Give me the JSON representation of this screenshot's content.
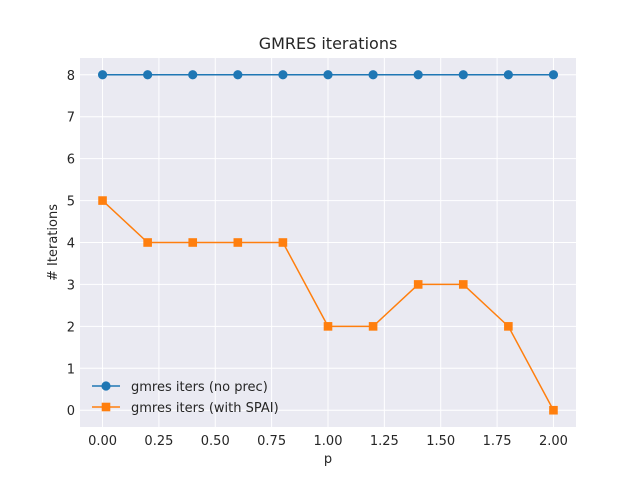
{
  "chart_data": {
    "type": "line",
    "title": "GMRES iterations",
    "xlabel": "p",
    "ylabel": "# Iterations",
    "x": [
      0.0,
      0.2,
      0.4,
      0.6,
      0.8,
      1.0,
      1.2,
      1.4,
      1.6,
      1.8,
      2.0
    ],
    "xlim": [
      -0.1,
      2.1
    ],
    "ylim": [
      -0.4,
      8.4
    ],
    "xticks": [
      0.0,
      0.25,
      0.5,
      0.75,
      1.0,
      1.25,
      1.5,
      1.75,
      2.0
    ],
    "xtick_labels": [
      "0.00",
      "0.25",
      "0.50",
      "0.75",
      "1.00",
      "1.25",
      "1.50",
      "1.75",
      "2.00"
    ],
    "yticks": [
      0,
      1,
      2,
      3,
      4,
      5,
      6,
      7,
      8
    ],
    "ytick_labels": [
      "0",
      "1",
      "2",
      "3",
      "4",
      "5",
      "6",
      "7",
      "8"
    ],
    "grid": true,
    "legend_position": "lower-left",
    "series": [
      {
        "name": "gmres iters (no prec)",
        "values": [
          8,
          8,
          8,
          8,
          8,
          8,
          8,
          8,
          8,
          8,
          8
        ],
        "color": "#1f77b4",
        "marker": "circle"
      },
      {
        "name": "gmres iters (with SPAI)",
        "values": [
          5,
          4,
          4,
          4,
          4,
          2,
          2,
          3,
          3,
          2,
          0
        ],
        "color": "#ff7f0e",
        "marker": "square"
      }
    ]
  },
  "style": {
    "plot_background": "#eaeaf2",
    "grid_color": "#ffffff",
    "text_color": "#262626"
  }
}
